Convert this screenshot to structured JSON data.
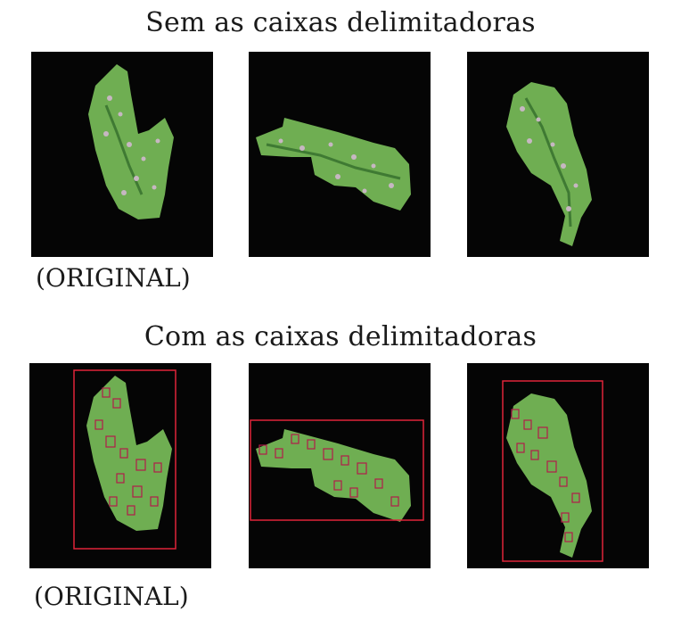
{
  "top_title": "Sem as caixas delimitadoras",
  "bottom_title": "Com as caixas delimitadoras",
  "top_caption": "(ORIGINAL)",
  "bottom_caption": "(ORIGINAL)",
  "colors": {
    "background": "#050505",
    "leaf": "#6fae52",
    "leaf_dark": "#3f7a33",
    "box": "#e0243a",
    "box_inner": "#b21c4a"
  },
  "panels": [
    {
      "id": "leaf-1",
      "label": "leaf image 1"
    },
    {
      "id": "leaf-2",
      "label": "leaf image 2"
    },
    {
      "id": "leaf-3",
      "label": "leaf image 3"
    }
  ]
}
